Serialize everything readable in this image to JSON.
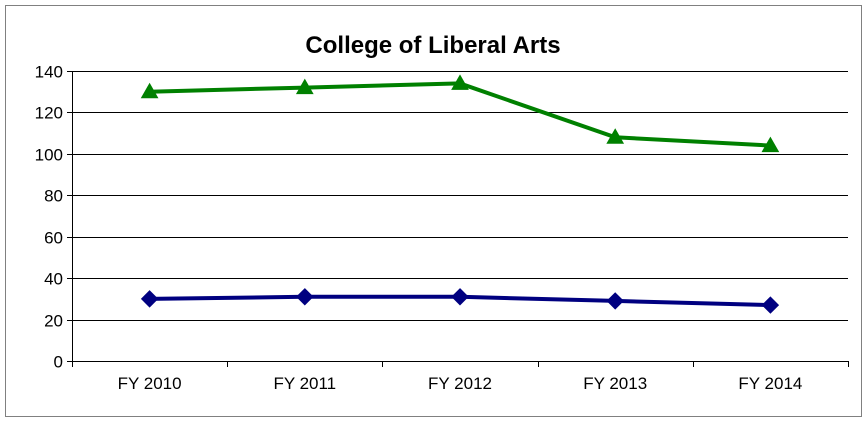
{
  "chart_data": {
    "type": "line",
    "title": "College of Liberal Arts",
    "categories": [
      "FY 2010",
      "FY 2011",
      "FY 2012",
      "FY 2013",
      "FY 2014"
    ],
    "ylim": [
      0,
      140
    ],
    "yticks": [
      0,
      20,
      40,
      60,
      80,
      100,
      120,
      140
    ],
    "grid": true,
    "legend": "none",
    "series": [
      {
        "values": [
          130,
          132,
          134,
          108,
          104
        ],
        "color": "#008000",
        "marker": "triangle"
      },
      {
        "values": [
          30,
          31,
          31,
          29,
          27
        ],
        "color": "#000080",
        "marker": "diamond"
      }
    ]
  }
}
